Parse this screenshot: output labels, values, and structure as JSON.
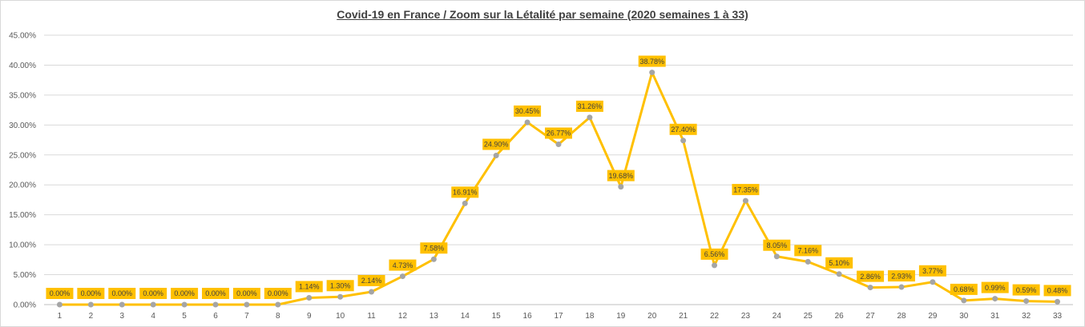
{
  "chart_data": {
    "type": "line",
    "title": "Covid-19 en France / Zoom  sur la Létalité par semaine (2020 semaines 1 à 33)",
    "xlabel": "",
    "ylabel": "",
    "ylim": [
      0,
      45
    ],
    "y_tick_labels": [
      "0.00%",
      "5.00%",
      "10.00%",
      "15.00%",
      "20.00%",
      "25.00%",
      "30.00%",
      "35.00%",
      "40.00%",
      "45.00%"
    ],
    "categories": [
      "1",
      "2",
      "3",
      "4",
      "5",
      "6",
      "7",
      "8",
      "9",
      "10",
      "11",
      "12",
      "13",
      "14",
      "15",
      "16",
      "17",
      "18",
      "19",
      "20",
      "21",
      "22",
      "23",
      "24",
      "25",
      "26",
      "27",
      "28",
      "29",
      "30",
      "31",
      "32",
      "33"
    ],
    "series": [
      {
        "values": [
          0,
          0,
          0,
          0,
          0,
          0,
          0,
          0,
          1.14,
          1.3,
          2.14,
          4.73,
          7.58,
          16.91,
          24.9,
          30.45,
          26.77,
          31.26,
          19.68,
          38.78,
          27.4,
          6.56,
          17.35,
          8.05,
          7.16,
          5.1,
          2.86,
          2.93,
          3.77,
          0.68,
          0.99,
          0.59,
          0.48
        ],
        "labels": [
          "0.00%",
          "0.00%",
          "0.00%",
          "0.00%",
          "0.00%",
          "0.00%",
          "0.00%",
          "0.00%",
          "1.14%",
          "1.30%",
          "2.14%",
          "4.73%",
          "7.58%",
          "16.91%",
          "24.90%",
          "30.45%",
          "26.77%",
          "31.26%",
          "19.68%",
          "38.78%",
          "27.40%",
          "6.56%",
          "17.35%",
          "8.05%",
          "7.16%",
          "5.10%",
          "2.86%",
          "2.93%",
          "3.77%",
          "0.68%",
          "0.99%",
          "0.59%",
          "0.48%"
        ]
      }
    ],
    "grid": true,
    "legend": "none",
    "colors": {
      "line": "#ffc000",
      "marker": "#a5a5a5",
      "label_bg": "#ffc000",
      "grid": "#d9d9d9"
    }
  }
}
